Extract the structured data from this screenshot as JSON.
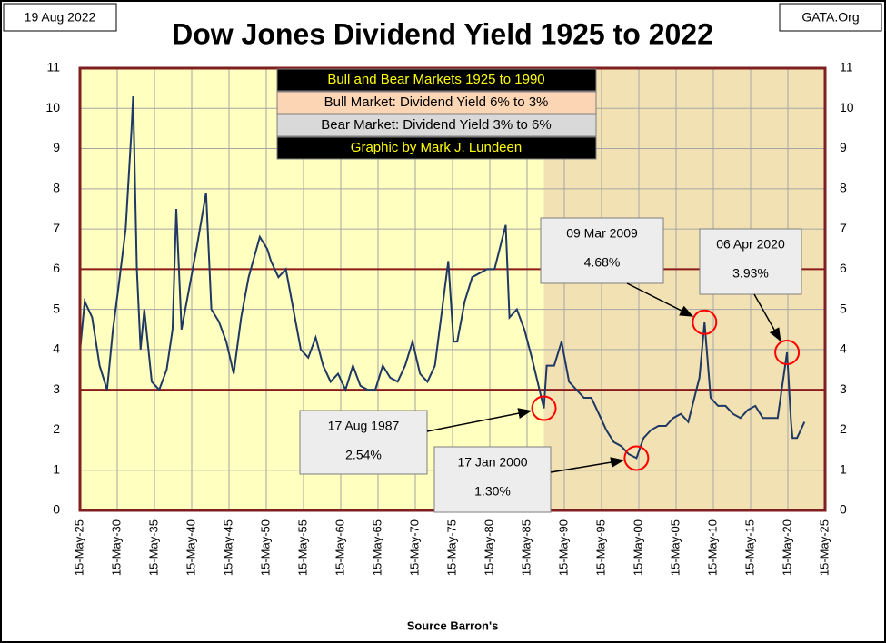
{
  "chart_data": {
    "type": "line",
    "title": "Dow Jones Dividend Yield 1925 to 2022",
    "date_label": "19 Aug 2022",
    "source_label": "GATA.Org",
    "x_label": "Source Barron's",
    "info_box": [
      "Bull and Bear Markets 1925 to 1990",
      "Bull Market: Dividend Yield 6% to 3%",
      "Bear Market: Dividend Yield 3% to 6%",
      "Graphic by Mark J. Lundeen"
    ],
    "x": [
      1925.4,
      1926,
      1927,
      1928,
      1929,
      1929.8,
      1930.5,
      1931.5,
      1932.3,
      1932.5,
      1933,
      1933.5,
      1934,
      1935,
      1936,
      1937,
      1937.8,
      1938.3,
      1939,
      1940,
      1941,
      1942.3,
      1943,
      1944,
      1945,
      1946,
      1947,
      1948,
      1949.5,
      1950.5,
      1951,
      1952,
      1953,
      1954,
      1955,
      1956,
      1957,
      1958,
      1959,
      1960,
      1961,
      1962,
      1963,
      1964,
      1965,
      1966,
      1967,
      1968,
      1969,
      1970,
      1971,
      1972,
      1973,
      1974.8,
      1975.5,
      1976,
      1977,
      1978,
      1979,
      1980,
      1981,
      1982.5,
      1983,
      1984,
      1985,
      1986,
      1987.63,
      1988,
      1989,
      1990,
      1991,
      1992,
      1993,
      1994,
      1995,
      1996,
      1997,
      1998,
      1999,
      2000.05,
      2001,
      2002,
      2003,
      2004,
      2005,
      2006,
      2007,
      2008.5,
      2009.19,
      2010,
      2011,
      2012,
      2013,
      2014,
      2015,
      2016,
      2017,
      2018,
      2019,
      2020.26,
      2020.8,
      2021,
      2021.6,
      2022.6
    ],
    "series": [
      {
        "name": "Dividend Yield",
        "color": "#1f3864",
        "values": [
          4.0,
          5.2,
          4.8,
          3.6,
          3.0,
          4.5,
          5.5,
          7.0,
          9.5,
          10.3,
          6.0,
          4.0,
          5.0,
          3.2,
          3.0,
          3.5,
          4.5,
          7.5,
          4.5,
          5.5,
          6.5,
          7.9,
          5.0,
          4.7,
          4.2,
          3.4,
          4.8,
          5.8,
          6.8,
          6.5,
          6.2,
          5.8,
          6.0,
          5.0,
          4.0,
          3.8,
          4.3,
          3.6,
          3.2,
          3.4,
          3.0,
          3.6,
          3.1,
          3.0,
          3.0,
          3.6,
          3.3,
          3.2,
          3.6,
          4.2,
          3.4,
          3.2,
          3.6,
          6.2,
          4.2,
          4.2,
          5.2,
          5.8,
          5.9,
          6.0,
          6.0,
          7.1,
          4.8,
          5.0,
          4.5,
          3.8,
          2.54,
          3.6,
          3.6,
          4.2,
          3.2,
          3.0,
          2.8,
          2.8,
          2.4,
          2.0,
          1.7,
          1.6,
          1.4,
          1.3,
          1.8,
          2.0,
          2.1,
          2.1,
          2.3,
          2.4,
          2.2,
          3.3,
          4.68,
          2.8,
          2.6,
          2.6,
          2.4,
          2.3,
          2.5,
          2.6,
          2.3,
          2.3,
          2.3,
          3.93,
          2.2,
          1.8,
          1.8,
          2.2
        ]
      }
    ],
    "ylim": [
      0,
      11
    ],
    "yticks": [
      0,
      1,
      2,
      3,
      4,
      5,
      6,
      7,
      8,
      9,
      10,
      11
    ],
    "xlim": [
      1925.37,
      2025.37
    ],
    "xticks": [
      {
        "value": 1925.37,
        "label": "15-May-25"
      },
      {
        "value": 1930.37,
        "label": "15-May-30"
      },
      {
        "value": 1935.37,
        "label": "15-May-35"
      },
      {
        "value": 1940.37,
        "label": "15-May-40"
      },
      {
        "value": 1945.37,
        "label": "15-May-45"
      },
      {
        "value": 1950.37,
        "label": "15-May-50"
      },
      {
        "value": 1955.37,
        "label": "15-May-55"
      },
      {
        "value": 1960.37,
        "label": "15-May-60"
      },
      {
        "value": 1965.37,
        "label": "15-May-65"
      },
      {
        "value": 1970.37,
        "label": "15-May-70"
      },
      {
        "value": 1975.37,
        "label": "15-May-75"
      },
      {
        "value": 1980.37,
        "label": "15-May-80"
      },
      {
        "value": 1985.37,
        "label": "15-May-85"
      },
      {
        "value": 1990.37,
        "label": "15-May-90"
      },
      {
        "value": 1995.37,
        "label": "15-May-95"
      },
      {
        "value": 2000.37,
        "label": "15-May-00"
      },
      {
        "value": 2005.37,
        "label": "15-May-05"
      },
      {
        "value": 2010.37,
        "label": "15-May-10"
      },
      {
        "value": 2015.37,
        "label": "15-May-15"
      },
      {
        "value": 2020.37,
        "label": "15-May-20"
      },
      {
        "value": 2025.37,
        "label": "15-May-25"
      }
    ],
    "grid": true,
    "reference_lines": [
      6,
      3
    ],
    "shade_start": 1987.63,
    "annotations": [
      {
        "label": "17 Aug 1987",
        "text": "2.54%",
        "x": 1987.63,
        "y": 2.54
      },
      {
        "label": "17 Jan 2000",
        "text": "1.30%",
        "x": 2000.05,
        "y": 1.3
      },
      {
        "label": "09 Mar 2009",
        "text": "4.68%",
        "x": 2009.19,
        "y": 4.68
      },
      {
        "label": "06 Apr 2020",
        "text": "3.93%",
        "x": 2020.26,
        "y": 3.93
      }
    ]
  }
}
